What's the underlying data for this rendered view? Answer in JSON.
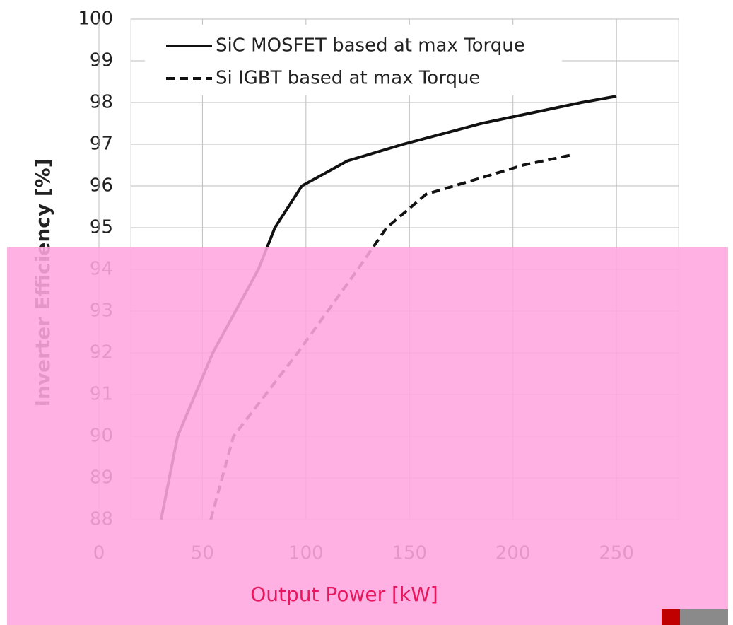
{
  "chart_data": {
    "type": "line",
    "xlabel": "Output Power [kW]",
    "ylabel": "Inverter Efficiency [%]",
    "xlim": [
      0,
      280
    ],
    "xticks": [
      0,
      50,
      100,
      150,
      200,
      250
    ],
    "ylim": [
      88,
      100
    ],
    "yticks": [
      88,
      89,
      90,
      91,
      92,
      93,
      94,
      95,
      96,
      97,
      98,
      99,
      100
    ],
    "grid": true,
    "legend": "upper left",
    "series": [
      {
        "name": "SiC MOSFET based at max Torque",
        "color": "#111111",
        "linestyle": "solid",
        "x": [
          30,
          38,
          55,
          77,
          85,
          98,
          120,
          147,
          185,
          233,
          250
        ],
        "values": [
          88,
          90,
          92,
          94,
          95,
          96,
          96.6,
          97,
          97.5,
          98,
          98.15
        ]
      },
      {
        "name": "Si IGBT based at max Torque",
        "color": "#111111",
        "linestyle": "dashed",
        "x": [
          54,
          65,
          96,
          125,
          139,
          158,
          185,
          205,
          229
        ],
        "values": [
          88,
          90,
          92,
          94,
          95,
          95.8,
          96.2,
          96.5,
          96.75
        ]
      }
    ]
  }
}
